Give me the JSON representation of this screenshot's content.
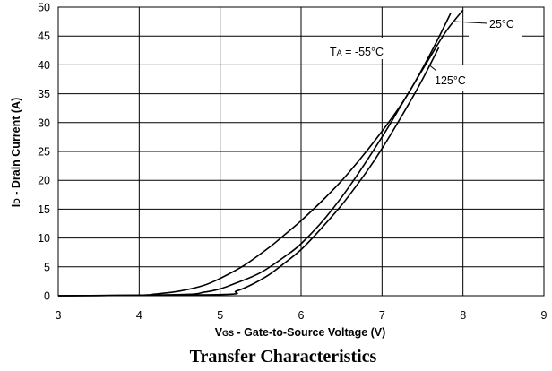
{
  "chart_data": {
    "type": "line",
    "title": "Transfer Characteristics",
    "xlabel": {
      "prefix": "V",
      "sub": "GS",
      "rest": " - Gate-to-Source Voltage (V)"
    },
    "ylabel": {
      "prefix": "I",
      "sub": "D",
      "rest": " - Drain Current (A)"
    },
    "xlim": [
      3,
      9
    ],
    "ylim": [
      0,
      50
    ],
    "xticks": [
      3,
      4,
      5,
      6,
      7,
      8,
      9
    ],
    "yticks": [
      0,
      5,
      10,
      15,
      20,
      25,
      30,
      35,
      40,
      45,
      50
    ],
    "grid": true,
    "series": [
      {
        "name": "-55°C",
        "x": [
          3.0,
          4.0,
          4.2,
          4.5,
          4.8,
          5.0,
          5.3,
          5.6,
          5.8,
          6.0,
          6.3,
          6.6,
          7.0,
          7.3,
          7.6,
          7.85
        ],
        "y": [
          0.0,
          0.1,
          0.3,
          0.8,
          1.8,
          3.0,
          5.3,
          8.3,
          10.6,
          13.0,
          17.0,
          21.5,
          28.5,
          34.5,
          42.0,
          49.0
        ]
      },
      {
        "name": "25°C",
        "x": [
          3.0,
          4.5,
          4.8,
          5.0,
          5.2,
          5.5,
          5.8,
          6.0,
          6.3,
          6.6,
          7.0,
          7.3,
          7.6,
          7.8,
          8.0
        ],
        "y": [
          0.0,
          0.2,
          0.6,
          1.2,
          2.2,
          4.0,
          6.8,
          9.0,
          13.5,
          19.0,
          27.5,
          34.5,
          41.5,
          46.0,
          49.5
        ]
      },
      {
        "name": "125°C",
        "x": [
          3.0,
          5.0,
          5.2,
          5.4,
          5.6,
          5.8,
          6.0,
          6.2,
          6.5,
          6.8,
          7.0,
          7.3,
          7.5,
          7.7
        ],
        "y": [
          0.0,
          0.2,
          0.8,
          2.0,
          3.6,
          5.7,
          8.0,
          10.9,
          15.7,
          21.3,
          25.5,
          32.5,
          37.5,
          43.0
        ]
      }
    ],
    "annotations": [
      {
        "series": "-55°C",
        "prefix": "T",
        "sub": "A",
        "text": " = -55°C"
      },
      {
        "series": "25°C",
        "text": "25°C"
      },
      {
        "series": "125°C",
        "text": "125°C"
      }
    ],
    "colors": {
      "line": "#000000",
      "grid": "#000000"
    }
  }
}
